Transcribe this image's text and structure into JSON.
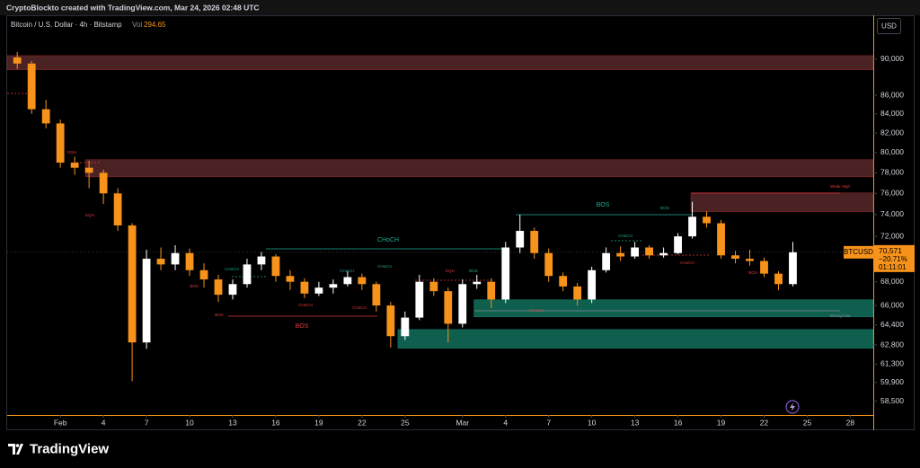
{
  "header": "CryptoBlockto created with TradingView.com, Mar 24, 2026 02:48 UTC",
  "logo": "TradingView",
  "chart_data": {
    "type": "candlestick",
    "title": "Bitcoin / U.S. Dollar · 4h · Bitstamp",
    "volume_label": "Vol",
    "volume_value": "294.65",
    "currency": "USD",
    "log_scale": true,
    "up_color": "#ffffff",
    "down_color": "#f7931a",
    "xlim": [
      -2.7,
      57.6
    ],
    "ylim": [
      57500,
      95000
    ],
    "xticks": [
      {
        "value": 1,
        "label": "Feb"
      },
      {
        "value": 4,
        "label": "4"
      },
      {
        "value": 7,
        "label": "7"
      },
      {
        "value": 10,
        "label": "10"
      },
      {
        "value": 13,
        "label": "13"
      },
      {
        "value": 16,
        "label": "16"
      },
      {
        "value": 19,
        "label": "19"
      },
      {
        "value": 22,
        "label": "22"
      },
      {
        "value": 25,
        "label": "25"
      },
      {
        "value": 29,
        "label": "Mar"
      },
      {
        "value": 32,
        "label": "4"
      },
      {
        "value": 35,
        "label": "7"
      },
      {
        "value": 38,
        "label": "10"
      },
      {
        "value": 41,
        "label": "13"
      },
      {
        "value": 44,
        "label": "16"
      },
      {
        "value": 47,
        "label": "19"
      },
      {
        "value": 50,
        "label": "22"
      },
      {
        "value": 53,
        "label": "25"
      },
      {
        "value": 56,
        "label": "28"
      }
    ],
    "yticks": [
      {
        "value": 90000,
        "label": "90,000"
      },
      {
        "value": 86000,
        "label": "86,000"
      },
      {
        "value": 84000,
        "label": "84,000"
      },
      {
        "value": 82000,
        "label": "82,000"
      },
      {
        "value": 80000,
        "label": "80,000"
      },
      {
        "value": 78000,
        "label": "78,000"
      },
      {
        "value": 76000,
        "label": "76,000"
      },
      {
        "value": 74000,
        "label": "74,000"
      },
      {
        "value": 72000,
        "label": "72,000"
      },
      {
        "value": 68000,
        "label": "68,000"
      },
      {
        "value": 66000,
        "label": "66,000"
      },
      {
        "value": 64400,
        "label": "64,400"
      },
      {
        "value": 62800,
        "label": "62,800"
      },
      {
        "value": 61300,
        "label": "61,300"
      },
      {
        "value": 59900,
        "label": "59,900"
      },
      {
        "value": 58500,
        "label": "58,500"
      }
    ],
    "x": [
      -2,
      -1,
      0,
      1,
      2,
      3,
      4,
      5,
      6,
      7,
      8,
      9,
      10,
      11,
      12,
      13,
      14,
      15,
      16,
      17,
      18,
      19,
      20,
      21,
      22,
      23,
      24,
      25,
      26,
      27,
      28,
      29,
      30,
      31,
      32,
      33,
      34,
      35,
      36,
      37,
      38,
      39,
      40,
      41,
      42,
      43,
      44,
      45,
      46,
      47,
      48,
      49,
      50,
      51,
      52
    ],
    "open": [
      90200,
      89500,
      84500,
      83000,
      79000,
      78500,
      78000,
      76000,
      73000,
      63000,
      70000,
      69500,
      70500,
      69000,
      68200,
      66900,
      67800,
      69500,
      70200,
      68500,
      68000,
      67000,
      67500,
      67800,
      68400,
      67800,
      66000,
      63500,
      65000,
      68000,
      67200,
      64500,
      67800,
      68000,
      66500,
      71000,
      72500,
      70500,
      68500,
      67600,
      66500,
      69000,
      70500,
      70200,
      71000,
      70300,
      70500,
      72000,
      73800,
      73200,
      70300,
      70000,
      69800,
      68700,
      67800
    ],
    "high": [
      90800,
      89800,
      85500,
      83400,
      79600,
      79200,
      78300,
      76500,
      73200,
      70800,
      71000,
      71200,
      70900,
      69600,
      68600,
      68200,
      70000,
      70600,
      70400,
      69000,
      68300,
      68000,
      68200,
      68900,
      68700,
      68000,
      66300,
      65500,
      68600,
      68300,
      67500,
      68200,
      68600,
      68300,
      71500,
      74000,
      72800,
      70900,
      68800,
      67900,
      69300,
      71000,
      71100,
      71500,
      71200,
      71000,
      72300,
      75200,
      74300,
      73500,
      70700,
      70800,
      70100,
      68900,
      71500
    ],
    "low": [
      88900,
      84000,
      82500,
      78500,
      77800,
      76500,
      75000,
      72500,
      60000,
      62500,
      69000,
      69000,
      68500,
      67500,
      66300,
      66500,
      67500,
      69000,
      68000,
      67300,
      66600,
      66800,
      67000,
      67600,
      67300,
      65500,
      62600,
      63200,
      64800,
      66800,
      63000,
      64200,
      67400,
      65800,
      66200,
      70500,
      70000,
      68000,
      67200,
      66000,
      66200,
      68800,
      69800,
      70000,
      70000,
      70100,
      70400,
      71800,
      72800,
      70000,
      69600,
      69400,
      68400,
      67300,
      67600
    ],
    "close": [
      89500,
      84500,
      83000,
      79000,
      78500,
      78000,
      76000,
      73000,
      63000,
      70000,
      69500,
      70500,
      69000,
      68200,
      66900,
      67800,
      69500,
      70200,
      68500,
      68000,
      67000,
      67500,
      67800,
      68400,
      67800,
      66000,
      63500,
      65000,
      68000,
      67200,
      64500,
      67800,
      68000,
      66500,
      71000,
      72500,
      70500,
      68500,
      67600,
      66500,
      69000,
      70500,
      70200,
      71000,
      70300,
      70500,
      72000,
      73800,
      73200,
      70300,
      70000,
      69800,
      68700,
      67800,
      70571
    ],
    "zones": [
      {
        "from": -2.7,
        "low": 88800,
        "high": 90400,
        "color": "#4a2224"
      },
      {
        "from": 2.75,
        "low": 77600,
        "high": 79300,
        "color": "#4a2224"
      },
      {
        "from": 44.9,
        "low": 74270,
        "high": 76050,
        "color": "#4a2224"
      },
      {
        "from": 29.8,
        "low": 65060,
        "high": 66480,
        "color": "#0f5f4f"
      },
      {
        "from": 24.5,
        "low": 62540,
        "high": 64040,
        "color": "#0f5f4f"
      }
    ],
    "annotations": [
      {
        "text": "EQH",
        "color": "#e0393e"
      },
      {
        "text": "EQH",
        "color": "#e0393e"
      },
      {
        "text": "BOS",
        "color": "#e0393e"
      },
      {
        "text": "BOS",
        "color": "#e0393e"
      },
      {
        "text": "CHoCH",
        "color": "#22ab94"
      },
      {
        "text": "CHoCH",
        "color": "#e0393e"
      },
      {
        "text": "CHoCH",
        "color": "#22ab94"
      },
      {
        "text": "CHoCH",
        "color": "#e0393e"
      },
      {
        "text": "CHoCH",
        "color": "#22ab94"
      },
      {
        "text": "CHoCH",
        "color": "#22ab94"
      },
      {
        "text": "BOS",
        "color": "#e0393e"
      },
      {
        "text": "EQH",
        "color": "#e0393e"
      },
      {
        "text": "BOS",
        "color": "#22ab94"
      },
      {
        "text": "CHoCH",
        "color": "#e0393e"
      },
      {
        "text": "CHoCH",
        "color": "#22ab94"
      },
      {
        "text": "BOS",
        "color": "#22ab94"
      },
      {
        "text": "BOS",
        "color": "#22ab94"
      },
      {
        "text": "CHoCH",
        "color": "#e0393e"
      },
      {
        "text": "BOS",
        "color": "#e0393e"
      },
      {
        "text": "Weak High",
        "color": "#e0393e"
      },
      {
        "text": "Strong Low",
        "color": "#8a8e99"
      }
    ],
    "price_tag": {
      "symbol": "BTCUSD",
      "price": 70571,
      "price_label": "70,571",
      "change": "−20.71%",
      "countdown": "01:11:01",
      "color": "#f7931a"
    }
  }
}
